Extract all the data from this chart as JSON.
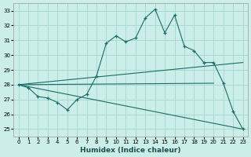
{
  "xlabel": "Humidex (Indice chaleur)",
  "bg_color": "#cceee8",
  "grid_color": "#aad8d2",
  "line_color": "#1a6b6b",
  "main_line": [
    [
      0,
      28.0
    ],
    [
      1,
      27.8
    ],
    [
      2,
      27.2
    ],
    [
      3,
      27.1
    ],
    [
      4,
      26.8
    ],
    [
      5,
      26.3
    ],
    [
      6,
      27.0
    ],
    [
      7,
      27.35
    ],
    [
      8,
      28.6
    ],
    [
      9,
      30.8
    ],
    [
      10,
      31.3
    ],
    [
      11,
      30.9
    ],
    [
      12,
      31.15
    ],
    [
      13,
      32.5
    ],
    [
      14,
      33.1
    ],
    [
      15,
      31.5
    ],
    [
      16,
      32.7
    ],
    [
      17,
      30.6
    ],
    [
      18,
      30.3
    ],
    [
      19,
      29.5
    ],
    [
      20,
      29.5
    ],
    [
      21,
      28.1
    ],
    [
      22,
      26.2
    ],
    [
      23,
      25.0
    ]
  ],
  "straight_line1": [
    [
      0,
      28.0
    ],
    [
      23,
      29.5
    ]
  ],
  "straight_line2": [
    [
      0,
      28.0
    ],
    [
      20,
      28.1
    ]
  ],
  "straight_line3": [
    [
      0,
      28.0
    ],
    [
      23,
      25.0
    ]
  ],
  "ylim": [
    24.5,
    33.5
  ],
  "xlim": [
    -0.5,
    23.5
  ],
  "yticks": [
    25,
    26,
    27,
    28,
    29,
    30,
    31,
    32,
    33
  ],
  "xticks": [
    0,
    1,
    2,
    3,
    4,
    5,
    6,
    7,
    8,
    9,
    10,
    11,
    12,
    13,
    14,
    15,
    16,
    17,
    18,
    19,
    20,
    21,
    22,
    23
  ]
}
